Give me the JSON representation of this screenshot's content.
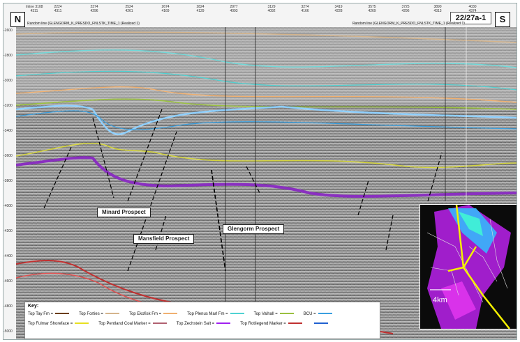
{
  "header": {
    "north_label": "N",
    "south_label": "S",
    "well_label": "22/27a-1",
    "random_line_label_1": "Random line (GLENGORM_K_PRESDO_FNLSTK_TIME_1 (Realized 1)",
    "random_line_label_2": "Random line (GLENGORM_K_PRESDO_FNLSTK_TIME_1 (Realized 1)"
  },
  "traces": [
    {
      "label": "Inline 3108",
      "cdp": "4311"
    },
    {
      "label": "2224",
      "cdp": "4311"
    },
    {
      "label": "2374",
      "cdp": "4296"
    },
    {
      "label": "2524",
      "cdp": "4261"
    },
    {
      "label": "2674",
      "cdp": "4169"
    },
    {
      "label": "2824",
      "cdp": "4129"
    },
    {
      "label": "2977",
      "cdp": "4093"
    },
    {
      "label": "3129",
      "cdp": "4092"
    },
    {
      "label": "3274",
      "cdp": "4166"
    },
    {
      "label": "3419",
      "cdp": "4228"
    },
    {
      "label": "3575",
      "cdp": "4269"
    },
    {
      "label": "3725",
      "cdp": "4296"
    },
    {
      "label": "3890",
      "cdp": "4313"
    },
    {
      "label": "4030",
      "cdp": "4374"
    }
  ],
  "y_axis": {
    "ticks": [
      "-2600",
      "-2800",
      "-3000",
      "-3200",
      "-3400",
      "-3600",
      "-3800",
      "-4000",
      "-4200",
      "-4400",
      "-4600",
      "-4800",
      "-5000"
    ]
  },
  "prospects": [
    {
      "name": "Minard Prospect"
    },
    {
      "name": "Mansfield Prospect"
    },
    {
      "name": "Glengorm Prospect"
    }
  ],
  "key": {
    "title": "Key:",
    "row1": [
      {
        "label": "Top Tay Fm =",
        "color": "#6b3e1a"
      },
      {
        "label": "Top Forties =",
        "color": "#d4b48c"
      },
      {
        "label": "Top Ekofisk Fm =",
        "color": "#f0b070"
      },
      {
        "label": "Top Plenus Marl Fm =",
        "color": "#4fd2d2"
      },
      {
        "label": "Top Valhall =",
        "color": "#9ac040"
      },
      {
        "label": "BCU =",
        "color": "#3aa0e0"
      }
    ],
    "row2": [
      {
        "label": "Top Fulmar Shoreface =",
        "color": "#e8e020"
      },
      {
        "label": "Top Pentland Coal Marker =",
        "color": "#b06070"
      },
      {
        "label": "Top Zechstein Salt =",
        "color": "#a020f0"
      },
      {
        "label": "Top Rotliegend Marker =",
        "color": "#c03030"
      },
      {
        "label": "",
        "color": "#2060d0"
      }
    ]
  },
  "map": {
    "scale_label": "4km"
  }
}
